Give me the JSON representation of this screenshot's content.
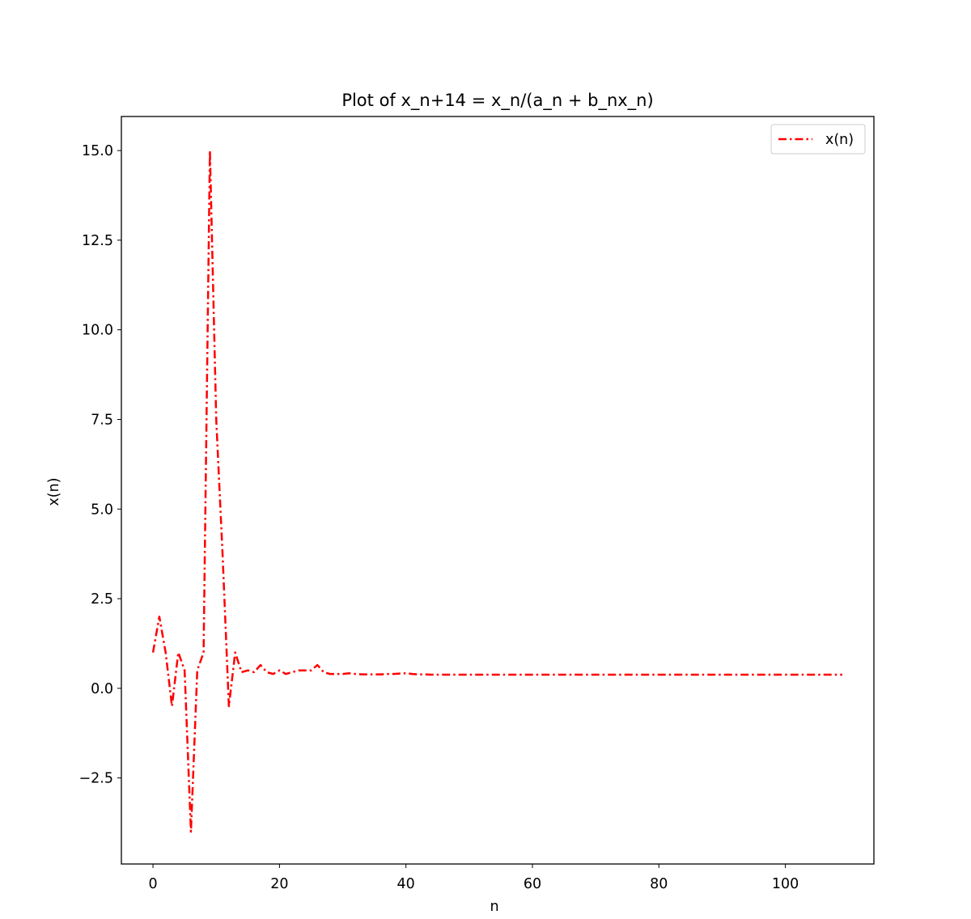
{
  "chart_data": {
    "type": "line",
    "title": "Plot of x_n+14 = x_n/(a_n + b_nx_n)",
    "xlabel": "n",
    "ylabel": "x(n)",
    "xlim": [
      -5,
      114
    ],
    "ylim": [
      -4.9,
      15.95
    ],
    "xticks": [
      0,
      20,
      40,
      60,
      80,
      100
    ],
    "xtick_labels": [
      "0",
      "20",
      "40",
      "60",
      "80",
      "100"
    ],
    "yticks": [
      -2.5,
      0.0,
      2.5,
      5.0,
      7.5,
      10.0,
      12.5,
      15.0
    ],
    "ytick_labels": [
      "−2.5",
      "0.0",
      "2.5",
      "5.0",
      "7.5",
      "10.0",
      "12.5",
      "15.0"
    ],
    "grid": false,
    "legend_position": "top-right",
    "series": [
      {
        "name": "x(n)",
        "color": "#ff0000",
        "line_style": "dash-dot",
        "x": [
          0,
          1,
          2,
          3,
          4,
          5,
          6,
          7,
          8,
          9,
          10,
          11,
          12,
          13,
          14,
          15,
          16,
          17,
          18,
          19,
          20,
          21,
          22,
          23,
          24,
          25,
          26,
          27,
          28,
          29,
          30,
          31,
          32,
          33,
          34,
          35,
          36,
          37,
          38,
          39,
          40,
          41,
          42,
          43,
          44,
          45,
          46,
          47,
          48,
          49,
          50,
          51,
          52,
          53,
          54,
          55,
          56,
          57,
          58,
          59,
          60,
          61,
          62,
          63,
          64,
          65,
          66,
          67,
          68,
          69,
          70,
          71,
          72,
          73,
          74,
          75,
          76,
          77,
          78,
          79,
          80,
          81,
          82,
          83,
          84,
          85,
          86,
          87,
          88,
          89,
          90,
          91,
          92,
          93,
          94,
          95,
          96,
          97,
          98,
          99,
          100,
          101,
          102,
          103,
          104,
          105,
          106,
          107,
          108,
          109
        ],
        "y": [
          1.0,
          2.0,
          1.0,
          -0.5,
          1.0,
          0.5,
          -4.0,
          0.5,
          1.0,
          15.0,
          7.5,
          3.75,
          -0.5,
          1.0,
          0.45,
          0.5,
          0.45,
          0.65,
          0.45,
          0.4,
          0.5,
          0.4,
          0.45,
          0.5,
          0.5,
          0.5,
          0.65,
          0.45,
          0.4,
          0.4,
          0.4,
          0.42,
          0.4,
          0.39,
          0.39,
          0.39,
          0.39,
          0.4,
          0.4,
          0.41,
          0.42,
          0.4,
          0.39,
          0.39,
          0.38,
          0.38,
          0.38,
          0.38,
          0.38,
          0.38,
          0.38,
          0.38,
          0.38,
          0.38,
          0.38,
          0.38,
          0.38,
          0.38,
          0.38,
          0.38,
          0.38,
          0.38,
          0.38,
          0.38,
          0.38,
          0.38,
          0.38,
          0.38,
          0.38,
          0.38,
          0.38,
          0.38,
          0.38,
          0.38,
          0.38,
          0.38,
          0.38,
          0.38,
          0.38,
          0.38,
          0.38,
          0.38,
          0.38,
          0.38,
          0.38,
          0.38,
          0.38,
          0.38,
          0.38,
          0.38,
          0.38,
          0.38,
          0.38,
          0.38,
          0.38,
          0.38,
          0.38,
          0.38,
          0.38,
          0.38,
          0.38,
          0.38,
          0.38,
          0.38,
          0.38,
          0.38,
          0.38,
          0.38,
          0.38,
          0.38
        ]
      }
    ]
  }
}
